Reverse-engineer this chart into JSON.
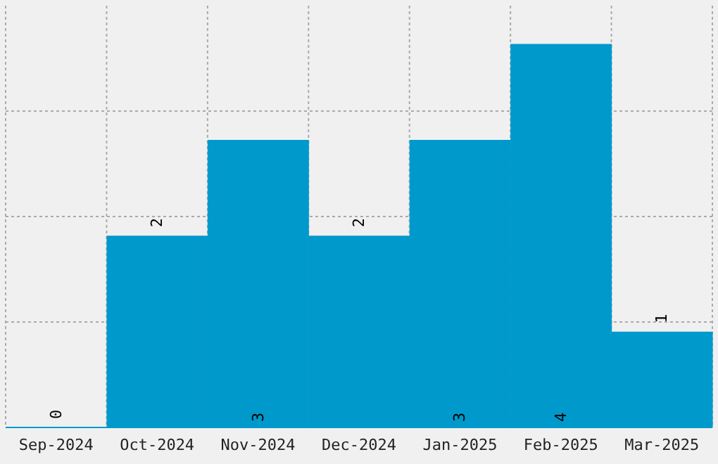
{
  "chart_data": {
    "type": "bar",
    "categories": [
      "Sep-2024",
      "Oct-2024",
      "Nov-2024",
      "Dec-2024",
      "Jan-2025",
      "Feb-2025",
      "Mar-2025"
    ],
    "values": [
      0,
      2,
      3,
      2,
      3,
      4,
      1
    ],
    "color": "#0099cc",
    "data_labels": true,
    "grid": true,
    "ylim": [
      0,
      4.4
    ],
    "yticks": [
      {
        "value": 1.1,
        "label": null
      },
      {
        "value": 2.2,
        "label": null
      },
      {
        "value": 3.3,
        "label": null
      }
    ],
    "tick_labels": "x"
  }
}
